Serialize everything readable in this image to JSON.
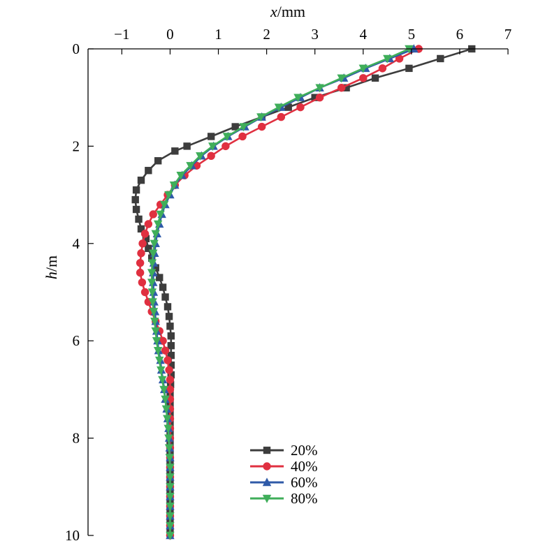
{
  "chart_data": {
    "type": "line",
    "xlabel": {
      "italic": "x",
      "rest": "/mm"
    },
    "ylabel": {
      "italic": "h",
      "rest": "/m"
    },
    "xlim": [
      -1.7,
      7
    ],
    "ylim": [
      0,
      10
    ],
    "x_ticks": [
      -1,
      0,
      1,
      2,
      3,
      4,
      5,
      6,
      7
    ],
    "y_ticks": [
      0,
      2,
      4,
      6,
      8,
      10
    ],
    "x_tick_labels": [
      "−1",
      "0",
      "1",
      "2",
      "3",
      "4",
      "5",
      "6",
      "7"
    ],
    "y_tick_labels": [
      "0",
      "2",
      "4",
      "6",
      "8",
      "10"
    ],
    "x_axis_position": "top",
    "y_axis_direction": "downward",
    "grid": false,
    "legend_position": "bottom-center",
    "series": [
      {
        "name": "20%",
        "color": "#3d3d3d",
        "marker": "square",
        "points": [
          [
            6.25,
            0.0
          ],
          [
            5.6,
            0.2
          ],
          [
            4.95,
            0.4
          ],
          [
            4.25,
            0.6
          ],
          [
            3.65,
            0.8
          ],
          [
            3.0,
            1.0
          ],
          [
            2.45,
            1.2
          ],
          [
            1.9,
            1.4
          ],
          [
            1.35,
            1.6
          ],
          [
            0.85,
            1.8
          ],
          [
            0.35,
            2.0
          ],
          [
            0.1,
            2.1
          ],
          [
            -0.25,
            2.3
          ],
          [
            -0.45,
            2.5
          ],
          [
            -0.6,
            2.7
          ],
          [
            -0.7,
            2.9
          ],
          [
            -0.72,
            3.1
          ],
          [
            -0.7,
            3.3
          ],
          [
            -0.65,
            3.5
          ],
          [
            -0.6,
            3.7
          ],
          [
            -0.5,
            3.9
          ],
          [
            -0.45,
            4.1
          ],
          [
            -0.38,
            4.3
          ],
          [
            -0.3,
            4.5
          ],
          [
            -0.22,
            4.7
          ],
          [
            -0.15,
            4.9
          ],
          [
            -0.1,
            5.1
          ],
          [
            -0.05,
            5.3
          ],
          [
            -0.02,
            5.5
          ],
          [
            0.0,
            5.7
          ],
          [
            0.02,
            5.9
          ],
          [
            0.02,
            6.1
          ],
          [
            0.02,
            6.3
          ],
          [
            0.02,
            6.5
          ],
          [
            0.02,
            6.7
          ],
          [
            0.01,
            6.9
          ],
          [
            0.0,
            7.1
          ],
          [
            0.0,
            7.3
          ],
          [
            0.0,
            7.5
          ],
          [
            0.0,
            7.7
          ],
          [
            0.0,
            7.9
          ],
          [
            0.0,
            8.1
          ],
          [
            0.0,
            8.3
          ],
          [
            0.0,
            8.5
          ],
          [
            0.0,
            8.7
          ],
          [
            0.0,
            8.9
          ],
          [
            0.0,
            9.1
          ],
          [
            0.0,
            9.3
          ],
          [
            0.0,
            9.5
          ],
          [
            0.0,
            9.7
          ],
          [
            0.0,
            9.9
          ]
        ]
      },
      {
        "name": "40%",
        "color": "#e03040",
        "marker": "circle",
        "points": [
          [
            5.15,
            0.0
          ],
          [
            4.75,
            0.2
          ],
          [
            4.4,
            0.4
          ],
          [
            4.0,
            0.6
          ],
          [
            3.55,
            0.8
          ],
          [
            3.1,
            1.0
          ],
          [
            2.7,
            1.2
          ],
          [
            2.3,
            1.4
          ],
          [
            1.9,
            1.6
          ],
          [
            1.5,
            1.8
          ],
          [
            1.15,
            2.0
          ],
          [
            0.85,
            2.2
          ],
          [
            0.55,
            2.4
          ],
          [
            0.3,
            2.6
          ],
          [
            0.1,
            2.8
          ],
          [
            -0.05,
            3.0
          ],
          [
            -0.2,
            3.2
          ],
          [
            -0.35,
            3.4
          ],
          [
            -0.45,
            3.6
          ],
          [
            -0.52,
            3.8
          ],
          [
            -0.57,
            4.0
          ],
          [
            -0.6,
            4.2
          ],
          [
            -0.62,
            4.4
          ],
          [
            -0.62,
            4.6
          ],
          [
            -0.58,
            4.8
          ],
          [
            -0.52,
            5.0
          ],
          [
            -0.45,
            5.2
          ],
          [
            -0.38,
            5.4
          ],
          [
            -0.3,
            5.6
          ],
          [
            -0.22,
            5.8
          ],
          [
            -0.15,
            6.0
          ],
          [
            -0.1,
            6.2
          ],
          [
            -0.05,
            6.4
          ],
          [
            -0.02,
            6.6
          ],
          [
            0.0,
            6.8
          ],
          [
            0.0,
            7.0
          ],
          [
            0.0,
            7.2
          ],
          [
            0.0,
            7.4
          ],
          [
            0.0,
            7.6
          ],
          [
            0.0,
            7.8
          ],
          [
            0.0,
            8.0
          ],
          [
            0.0,
            8.2
          ],
          [
            0.0,
            8.4
          ],
          [
            0.0,
            8.6
          ],
          [
            0.0,
            8.8
          ],
          [
            0.0,
            9.0
          ],
          [
            0.0,
            9.2
          ],
          [
            0.0,
            9.4
          ],
          [
            0.0,
            9.6
          ],
          [
            0.0,
            9.8
          ],
          [
            0.0,
            10.0
          ]
        ]
      },
      {
        "name": "60%",
        "color": "#2f5aa8",
        "marker": "triangle-up",
        "points": [
          [
            5.05,
            0.0
          ],
          [
            4.55,
            0.2
          ],
          [
            4.05,
            0.4
          ],
          [
            3.6,
            0.6
          ],
          [
            3.1,
            0.8
          ],
          [
            2.7,
            1.0
          ],
          [
            2.3,
            1.2
          ],
          [
            1.9,
            1.4
          ],
          [
            1.55,
            1.6
          ],
          [
            1.2,
            1.8
          ],
          [
            0.9,
            2.0
          ],
          [
            0.65,
            2.2
          ],
          [
            0.45,
            2.4
          ],
          [
            0.25,
            2.6
          ],
          [
            0.1,
            2.8
          ],
          [
            0.0,
            3.0
          ],
          [
            -0.1,
            3.2
          ],
          [
            -0.17,
            3.4
          ],
          [
            -0.22,
            3.6
          ],
          [
            -0.27,
            3.8
          ],
          [
            -0.3,
            4.0
          ],
          [
            -0.32,
            4.2
          ],
          [
            -0.34,
            4.4
          ],
          [
            -0.35,
            4.6
          ],
          [
            -0.35,
            4.8
          ],
          [
            -0.34,
            5.0
          ],
          [
            -0.33,
            5.2
          ],
          [
            -0.31,
            5.4
          ],
          [
            -0.3,
            5.6
          ],
          [
            -0.28,
            5.8
          ],
          [
            -0.26,
            6.0
          ],
          [
            -0.24,
            6.2
          ],
          [
            -0.2,
            6.4
          ],
          [
            -0.18,
            6.6
          ],
          [
            -0.15,
            6.8
          ],
          [
            -0.12,
            7.0
          ],
          [
            -0.1,
            7.2
          ],
          [
            -0.07,
            7.4
          ],
          [
            -0.05,
            7.6
          ],
          [
            -0.03,
            7.8
          ],
          [
            -0.02,
            8.0
          ],
          [
            -0.01,
            8.2
          ],
          [
            0.0,
            8.4
          ],
          [
            0.0,
            8.6
          ],
          [
            0.0,
            8.8
          ],
          [
            0.0,
            9.0
          ],
          [
            0.0,
            9.2
          ],
          [
            0.0,
            9.4
          ],
          [
            0.0,
            9.6
          ],
          [
            0.0,
            9.8
          ],
          [
            0.0,
            10.0
          ]
        ]
      },
      {
        "name": "80%",
        "color": "#3fae5a",
        "marker": "triangle-down",
        "points": [
          [
            4.95,
            0.0
          ],
          [
            4.5,
            0.2
          ],
          [
            4.0,
            0.4
          ],
          [
            3.55,
            0.6
          ],
          [
            3.1,
            0.8
          ],
          [
            2.65,
            1.0
          ],
          [
            2.25,
            1.2
          ],
          [
            1.88,
            1.4
          ],
          [
            1.52,
            1.6
          ],
          [
            1.18,
            1.8
          ],
          [
            0.88,
            2.0
          ],
          [
            0.62,
            2.2
          ],
          [
            0.42,
            2.4
          ],
          [
            0.22,
            2.6
          ],
          [
            0.08,
            2.8
          ],
          [
            -0.03,
            3.0
          ],
          [
            -0.12,
            3.2
          ],
          [
            -0.2,
            3.4
          ],
          [
            -0.25,
            3.6
          ],
          [
            -0.3,
            3.8
          ],
          [
            -0.33,
            4.0
          ],
          [
            -0.35,
            4.2
          ],
          [
            -0.37,
            4.4
          ],
          [
            -0.38,
            4.6
          ],
          [
            -0.38,
            4.8
          ],
          [
            -0.37,
            5.0
          ],
          [
            -0.36,
            5.2
          ],
          [
            -0.34,
            5.4
          ],
          [
            -0.32,
            5.6
          ],
          [
            -0.3,
            5.8
          ],
          [
            -0.28,
            6.0
          ],
          [
            -0.25,
            6.2
          ],
          [
            -0.22,
            6.4
          ],
          [
            -0.19,
            6.6
          ],
          [
            -0.16,
            6.8
          ],
          [
            -0.13,
            7.0
          ],
          [
            -0.1,
            7.2
          ],
          [
            -0.08,
            7.4
          ],
          [
            -0.06,
            7.6
          ],
          [
            -0.04,
            7.8
          ],
          [
            -0.03,
            8.0
          ],
          [
            -0.02,
            8.2
          ],
          [
            -0.01,
            8.4
          ],
          [
            0.0,
            8.6
          ],
          [
            0.0,
            8.8
          ],
          [
            0.0,
            9.0
          ],
          [
            0.0,
            9.2
          ],
          [
            0.0,
            9.4
          ],
          [
            0.0,
            9.6
          ],
          [
            0.0,
            9.8
          ],
          [
            0.0,
            10.0
          ]
        ]
      }
    ]
  }
}
